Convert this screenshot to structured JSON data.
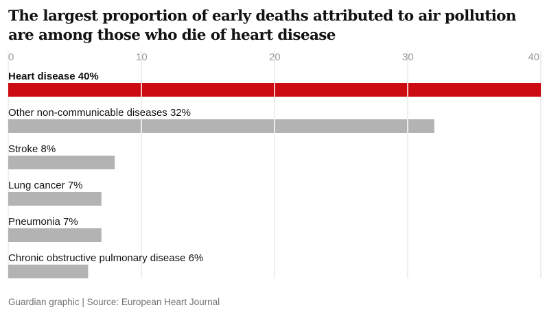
{
  "chart_data": {
    "type": "bar",
    "orientation": "horizontal",
    "title": "The largest proportion of early deaths attributed to air pollution are among those who die of heart disease",
    "categories": [
      "Heart disease 40%",
      "Other non-communicable diseases 32%",
      "Stroke 8%",
      "Lung cancer 7%",
      "Pneumonia 7%",
      "Chronic obstructive pulmonary disease 6%"
    ],
    "values": [
      40,
      32,
      8,
      7,
      7,
      6
    ],
    "highlighted_index": 0,
    "xlim": [
      0,
      40
    ],
    "xticks": [
      0,
      10,
      20,
      30,
      40
    ],
    "grid": true,
    "colors": {
      "highlight": "#cc0a11",
      "default": "#b3b3b3",
      "grid": "#dcdcdc"
    }
  },
  "source": "Guardian graphic | Source: European Heart Journal"
}
